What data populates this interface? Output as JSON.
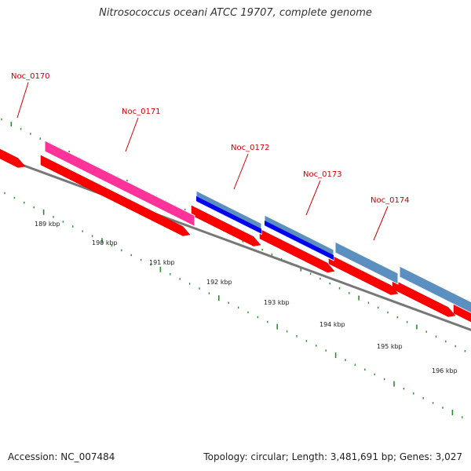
{
  "title": "Nitrosococcus oceani ATCC 19707, complete genome",
  "accession": "Accession: NC_007484",
  "summary": "Topology: circular; Length: 3,481,691 bp; Genes: 3,027",
  "colors": {
    "cds_pink": "#ff3399",
    "cds_blue": "#0000ee",
    "cds_steel": "#5b8fbf",
    "cds_red": "#ff0000",
    "backbone": "#777777",
    "ticks": "#2e8b2e",
    "label": "#cc0000"
  },
  "genes": [
    {
      "name": "Noc_0170"
    },
    {
      "name": "Noc_0171"
    },
    {
      "name": "Noc_0172"
    },
    {
      "name": "Noc_0173"
    },
    {
      "name": "Noc_0174"
    }
  ],
  "scale_labels": [
    "189 kbp",
    "190 kbp",
    "191 kbp",
    "192 kbp",
    "193 kbp",
    "194 kbp",
    "195 kbp",
    "196 kbp"
  ]
}
